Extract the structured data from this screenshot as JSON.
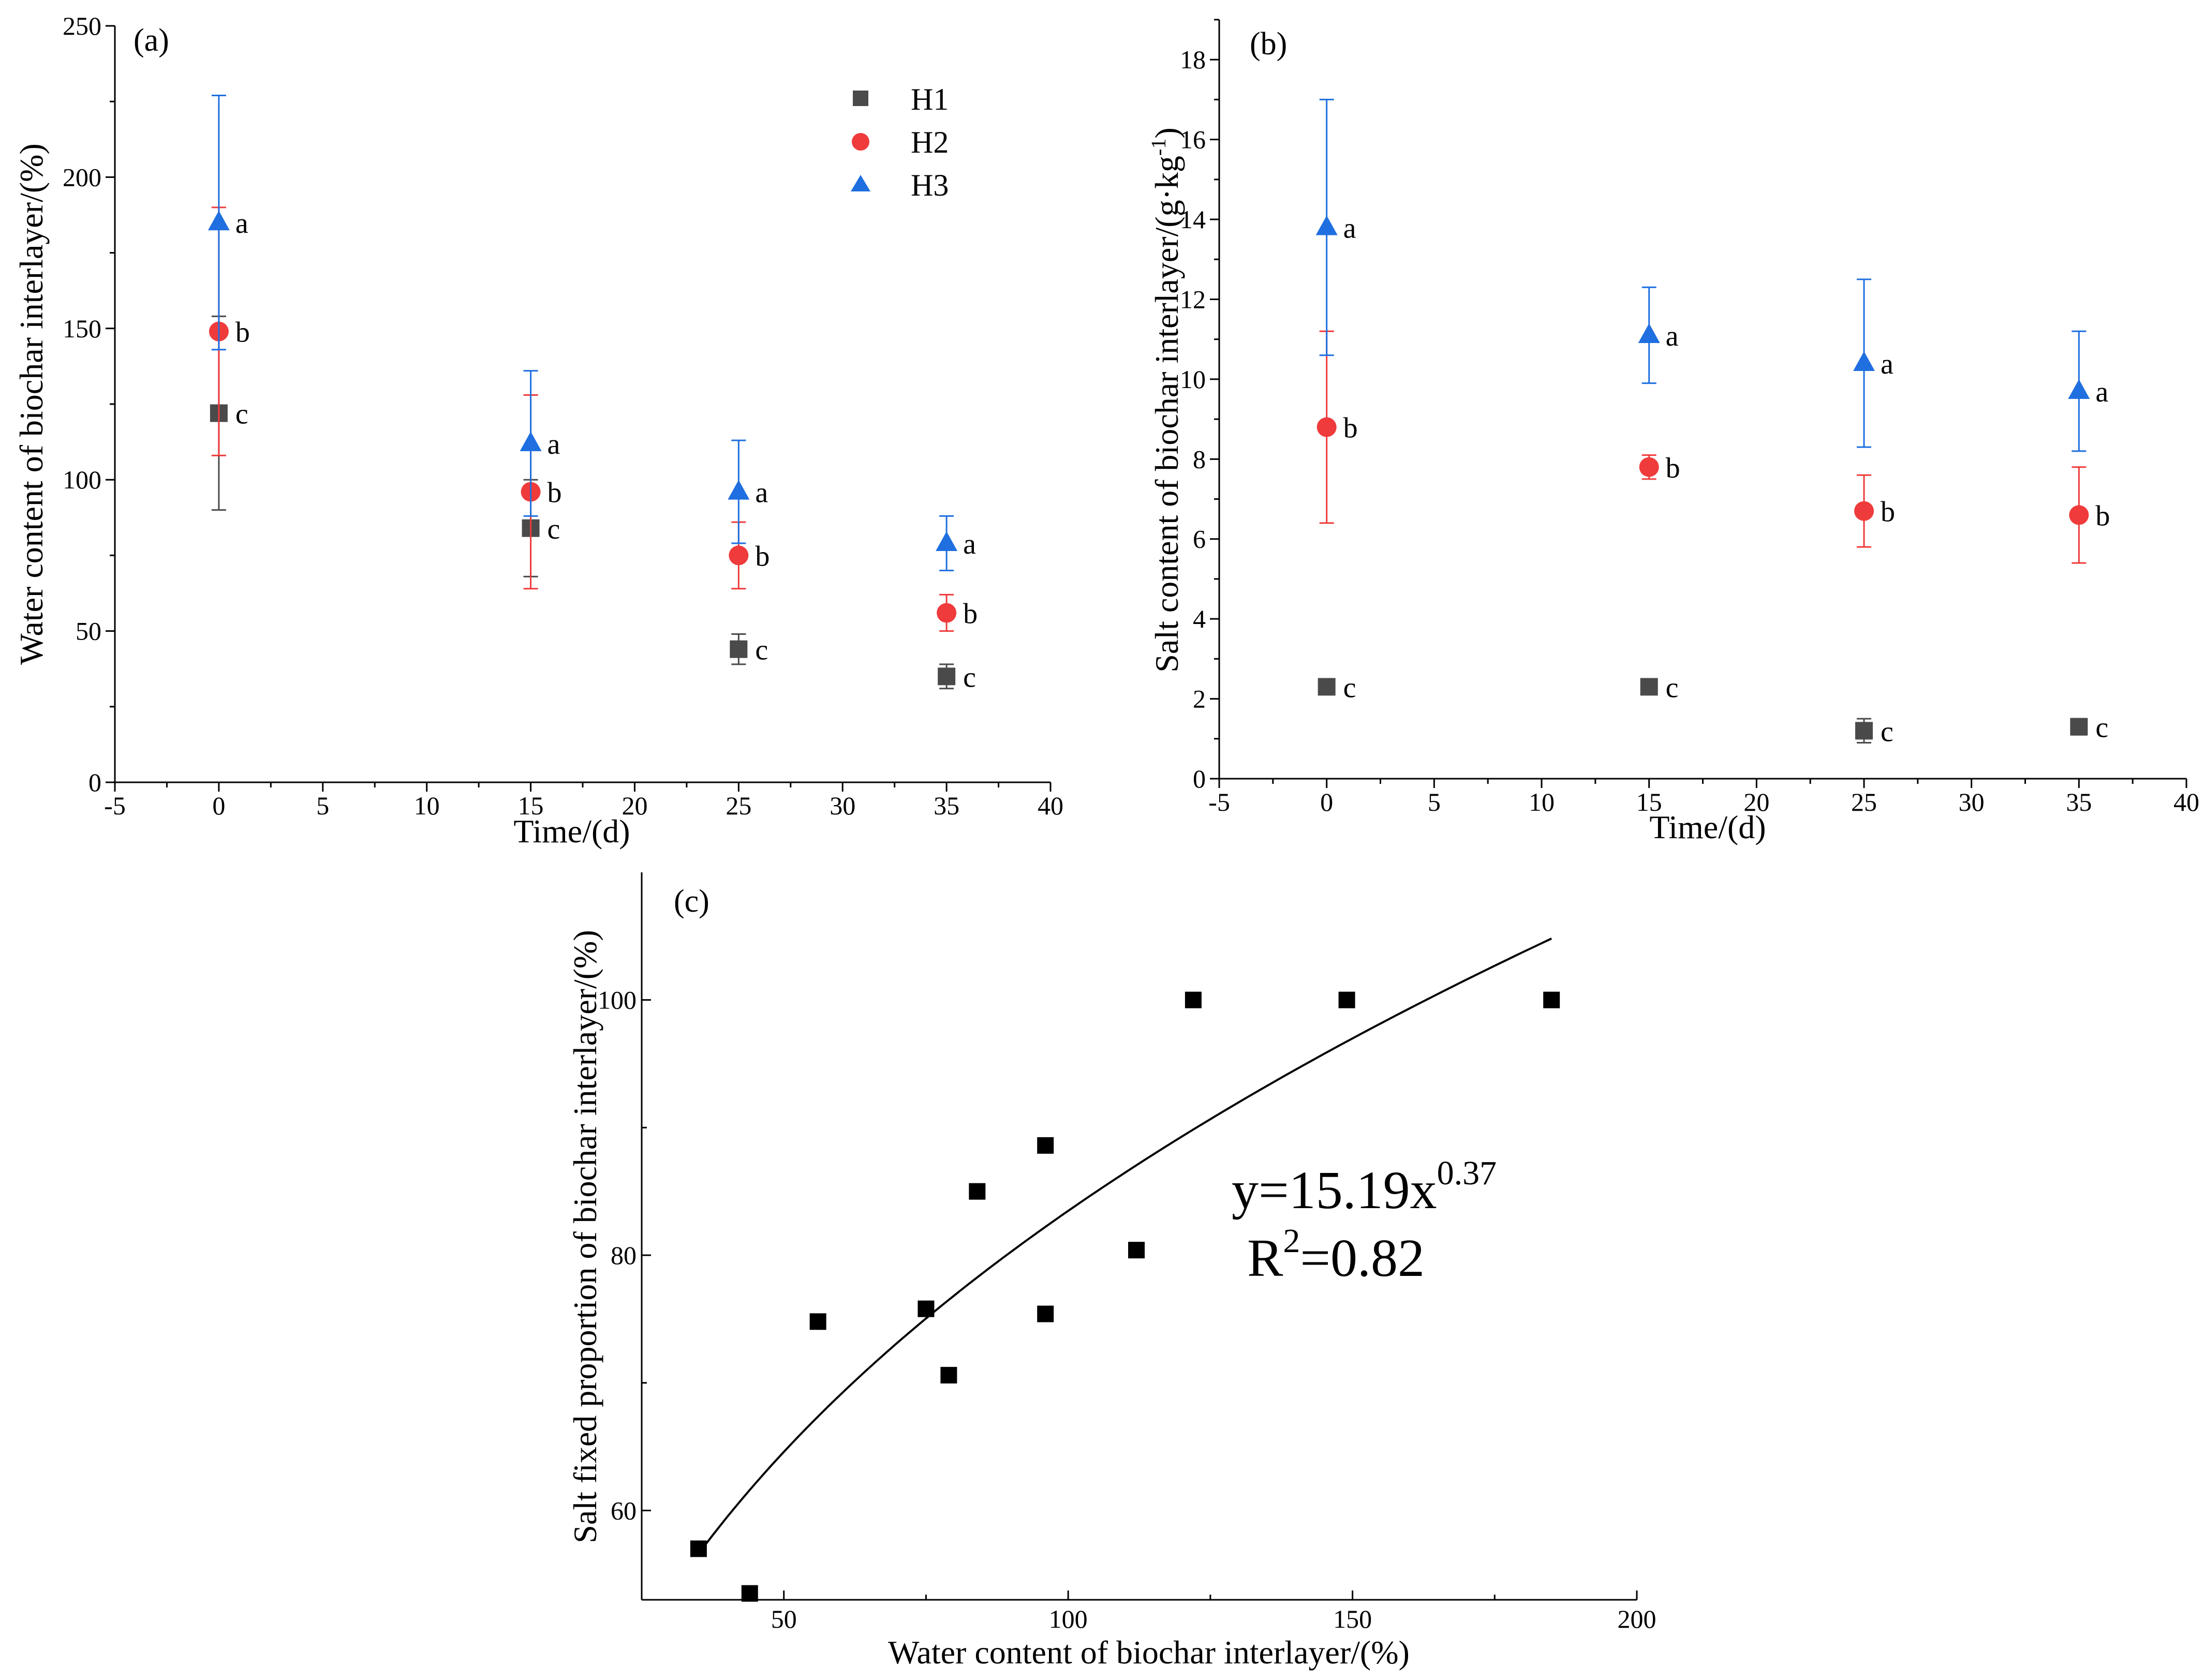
{
  "chart_data": [
    {
      "id": "a",
      "type": "scatter",
      "panel_label": "(a)",
      "title": "",
      "xlabel": "Time/(d)",
      "ylabel": "Water content of biochar interlayer/(%)",
      "xlim": [
        -5,
        40
      ],
      "ylim": [
        0,
        250
      ],
      "xticks": [
        "-5",
        "0",
        "5",
        "10",
        "15",
        "20",
        "25",
        "30",
        "35",
        "40"
      ],
      "yticks": [
        "0",
        "50",
        "100",
        "150",
        "200",
        "250"
      ],
      "legend": {
        "placement": "top-right",
        "entries": [
          "H1",
          "H2",
          "H3"
        ]
      },
      "series": [
        {
          "name": "H1",
          "marker": "square",
          "color": "#4a4a4a",
          "x": [
            0,
            15,
            25,
            35
          ],
          "y": [
            122,
            84,
            44,
            35
          ],
          "err": [
            32,
            16,
            5,
            4
          ],
          "labels": [
            "c",
            "c",
            "c",
            "c"
          ]
        },
        {
          "name": "H2",
          "marker": "circle",
          "color": "#ef3b3b",
          "x": [
            0,
            15,
            25,
            35
          ],
          "y": [
            149,
            96,
            75,
            56
          ],
          "err": [
            41,
            32,
            11,
            6
          ],
          "labels": [
            "b",
            "b",
            "b",
            "b"
          ]
        },
        {
          "name": "H3",
          "marker": "triangle",
          "color": "#1f6fe0",
          "x": [
            0,
            15,
            25,
            35
          ],
          "y": [
            185,
            112,
            96,
            79
          ],
          "err": [
            42,
            24,
            17,
            9
          ],
          "labels": [
            "a",
            "a",
            "a",
            "a"
          ]
        }
      ]
    },
    {
      "id": "b",
      "type": "scatter",
      "panel_label": "(b)",
      "title": "",
      "xlabel": "Time/(d)",
      "ylabel": "Salt content of biochar interlayer/(g·kg",
      "ylabel_sup": "-1",
      "ylabel_end": ")",
      "xlim": [
        -5,
        40
      ],
      "ylim": [
        0,
        19
      ],
      "xticks": [
        "-5",
        "0",
        "5",
        "10",
        "15",
        "20",
        "25",
        "30",
        "35",
        "40"
      ],
      "yticks": [
        "0",
        "2",
        "4",
        "6",
        "8",
        "10",
        "12",
        "14",
        "16",
        "18"
      ],
      "series": [
        {
          "name": "H1",
          "marker": "square",
          "color": "#4a4a4a",
          "x": [
            0,
            15,
            25,
            35
          ],
          "y": [
            2.3,
            2.3,
            1.2,
            1.3
          ],
          "err": [
            0.1,
            0.1,
            0.3,
            0.2
          ],
          "labels": [
            "c",
            "c",
            "c",
            "c"
          ]
        },
        {
          "name": "H2",
          "marker": "circle",
          "color": "#ef3b3b",
          "x": [
            0,
            15,
            25,
            35
          ],
          "y": [
            8.8,
            7.8,
            6.7,
            6.6
          ],
          "err": [
            2.4,
            0.3,
            0.9,
            1.2
          ],
          "labels": [
            "b",
            "b",
            "b",
            "b"
          ]
        },
        {
          "name": "H3",
          "marker": "triangle",
          "color": "#1f6fe0",
          "x": [
            0,
            15,
            25,
            35
          ],
          "y": [
            13.8,
            11.1,
            10.4,
            9.7
          ],
          "err": [
            3.2,
            1.2,
            2.1,
            1.5
          ],
          "labels": [
            "a",
            "a",
            "a",
            "a"
          ]
        }
      ]
    },
    {
      "id": "c",
      "type": "scatter",
      "panel_label": "(c)",
      "title": "",
      "xlabel": "Water content of biochar interlayer/(%)",
      "ylabel": "Salt fixed proportion of biochar interlayer/(%)",
      "xlim": [
        25,
        200
      ],
      "ylim": [
        53,
        110
      ],
      "xticks": [
        "50",
        "100",
        "150",
        "200"
      ],
      "yticks": [
        "60",
        "80",
        "100"
      ],
      "points": {
        "x": [
          35,
          44,
          56,
          75,
          79,
          84,
          96,
          96,
          112,
          122,
          149,
          185
        ],
        "y": [
          57,
          53.5,
          74.8,
          75.8,
          70.6,
          85,
          88.6,
          75.4,
          80.4,
          100,
          100,
          100
        ]
      },
      "fit": {
        "a": 15.19,
        "b": 0.37,
        "x_range": [
          35,
          185
        ]
      },
      "annotation": {
        "eq_prefix": "y=15.19x",
        "eq_exp": "0.37",
        "r2_prefix": "R",
        "r2_sup": "2",
        "r2_value": "=0.82"
      }
    }
  ]
}
